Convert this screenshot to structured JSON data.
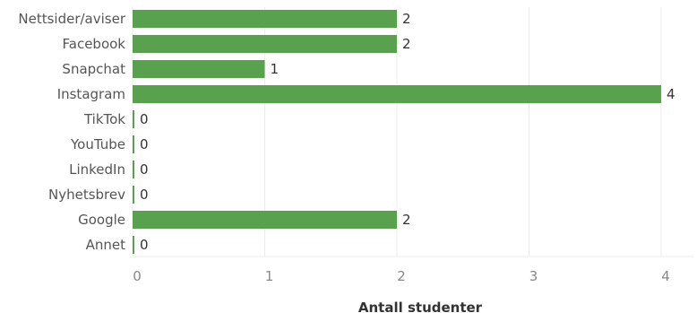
{
  "chart_data": {
    "type": "bar",
    "orientation": "horizontal",
    "categories": [
      "Nettsider/aviser",
      "Facebook",
      "Snapchat",
      "Instagram",
      "TikTok",
      "YouTube",
      "LinkedIn",
      "Nyhetsbrev",
      "Google",
      "Annet"
    ],
    "values": [
      2,
      2,
      1,
      4,
      0,
      0,
      0,
      0,
      2,
      0
    ],
    "value_labels": [
      "2",
      "2",
      "1",
      "4",
      "0",
      "0",
      "0",
      "0",
      "2",
      "0"
    ],
    "xlabel": "Antall studenter",
    "ylabel": "",
    "title": "",
    "xlim": [
      0,
      4.25
    ],
    "xticks": [
      "0",
      "1",
      "2",
      "3",
      "4"
    ],
    "grid": true,
    "bar_color": "#59a14f"
  }
}
